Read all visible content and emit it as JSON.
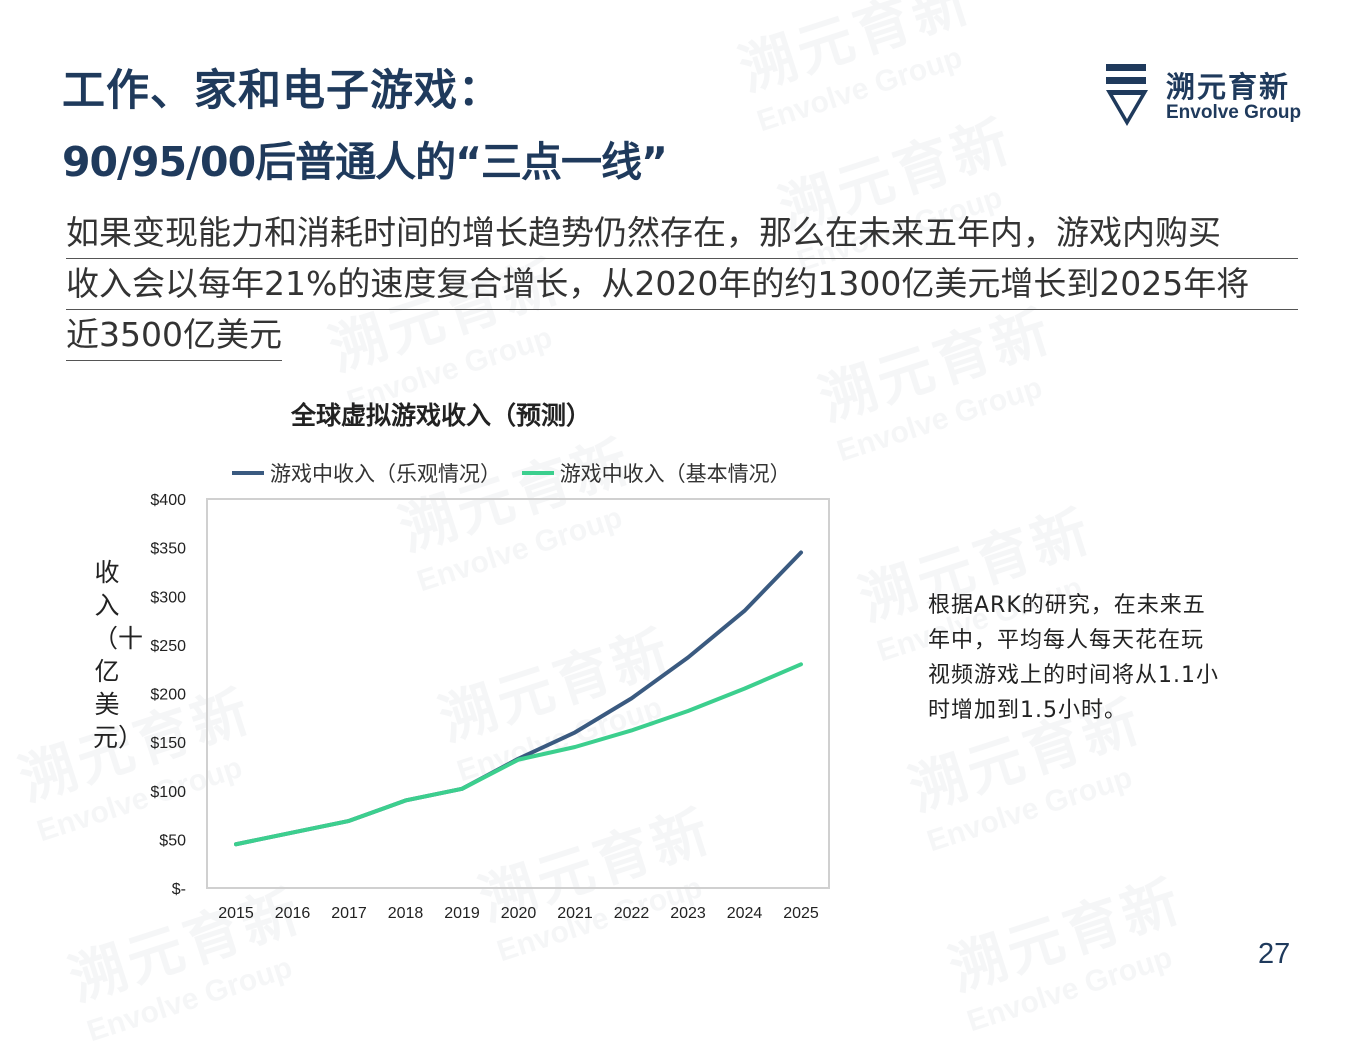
{
  "header": {
    "title_line1": "工作、家和电子游戏：",
    "title_line2": "90/95/00后普通人的“三点一线”"
  },
  "logo": {
    "name_cn": "溯元育新",
    "name_en": "Envolve Group",
    "icon": "envolve-logo-icon"
  },
  "watermark": {
    "text_cn": "溯元育新",
    "text_en": "Envolve Group"
  },
  "summary": {
    "line1": "如果变现能力和消耗时间的增长趋势仍然存在，那么在未来五年内，游戏内购买",
    "line2": "收入会以每年21%的速度复合增长，从2020年的约1300亿美元增长到2025年将",
    "line3": "近3500亿美元"
  },
  "note": {
    "line1": "根据ARK的研究，在未来五",
    "line2": "年中，平均每人每天花在玩",
    "line3": "视频游戏上的时间将从1.1小",
    "line4": "时增加到1.5小时。"
  },
  "page_number": "27",
  "colors": {
    "title": "#1f3a5c",
    "series_optimistic": "#3a5a80",
    "series_base": "#3ccf8e",
    "plot_border": "#d0d0d0"
  },
  "chart_data": {
    "type": "line",
    "title": "全球虚拟游戏收入（预测）",
    "ylabel": "收入（十亿美元）",
    "xlabel": "",
    "x": [
      "2015",
      "2016",
      "2017",
      "2018",
      "2019",
      "2020",
      "2021",
      "2022",
      "2023",
      "2024",
      "2025"
    ],
    "y_ticks": [
      "$-",
      "$50",
      "$100",
      "$150",
      "$200",
      "$250",
      "$300",
      "$350",
      "$400"
    ],
    "ylim": [
      0,
      400
    ],
    "grid": false,
    "legend_position": "top",
    "series": [
      {
        "name": "游戏中收入（乐观情况）",
        "values": [
          45,
          57,
          69,
          90,
          102,
          133,
          160,
          195,
          237,
          285,
          345
        ]
      },
      {
        "name": "游戏中收入（基本情况）",
        "values": [
          45,
          57,
          69,
          90,
          102,
          132,
          145,
          162,
          182,
          205,
          230
        ]
      }
    ]
  }
}
